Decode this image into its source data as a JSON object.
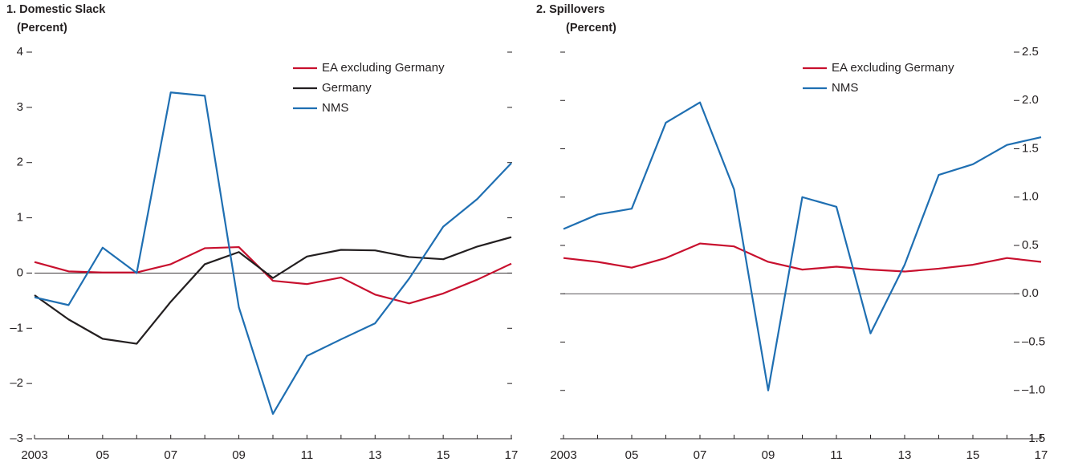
{
  "chart_data": [
    {
      "type": "line",
      "title": "1. Domestic Slack",
      "subtitle": "(Percent)",
      "categories": [
        "2003",
        null,
        "05",
        null,
        "07",
        null,
        "09",
        null,
        "11",
        null,
        "13",
        null,
        "15",
        null,
        "17"
      ],
      "series": [
        {
          "name": "EA excluding Germany",
          "color": "#c8102e",
          "values": [
            0.2,
            0.03,
            0.01,
            0.01,
            0.16,
            0.45,
            0.47,
            -0.14,
            -0.2,
            -0.08,
            -0.39,
            -0.55,
            -0.37,
            -0.12,
            0.17
          ]
        },
        {
          "name": "Germany",
          "color": "#231f20",
          "values": [
            -0.4,
            -0.84,
            -1.19,
            -1.28,
            -0.52,
            0.16,
            0.38,
            -0.09,
            0.3,
            0.42,
            0.41,
            0.29,
            0.25,
            0.48,
            0.65
          ]
        },
        {
          "name": "NMS",
          "color": "#1f6fb2",
          "values": [
            -0.44,
            -0.58,
            0.46,
            0,
            3.27,
            3.21,
            -0.62,
            -2.55,
            -1.5,
            -1.2,
            -0.91,
            -0.1,
            0.84,
            1.34,
            1.99
          ]
        }
      ],
      "ylim": [
        -3,
        4
      ],
      "yticks": [
        {
          "value": -3,
          "label": "–3"
        },
        {
          "value": -2,
          "label": "–2"
        },
        {
          "value": -1,
          "label": "–1"
        },
        0,
        1,
        2,
        3,
        4
      ],
      "axis_side": "left"
    },
    {
      "type": "line",
      "title": "2. Spillovers",
      "subtitle": "(Percent)",
      "categories": [
        "2003",
        null,
        "05",
        null,
        "07",
        null,
        "09",
        null,
        "11",
        null,
        "13",
        null,
        "15",
        null,
        "17"
      ],
      "series": [
        {
          "name": "EA excluding Germany",
          "color": "#c8102e",
          "values": [
            0.37,
            0.33,
            0.27,
            0.37,
            0.52,
            0.49,
            0.33,
            0.25,
            0.28,
            0.25,
            0.23,
            0.26,
            0.3,
            0.37,
            0.33
          ]
        },
        {
          "name": "NMS",
          "color": "#1f6fb2",
          "values": [
            0.67,
            0.82,
            0.88,
            1.77,
            1.98,
            1.08,
            -1.0,
            1.0,
            0.9,
            -0.41,
            0.3,
            1.23,
            1.34,
            1.54,
            1.62
          ]
        }
      ],
      "ylim": [
        -1.5,
        2.5
      ],
      "yticks": [
        {
          "value": -1.5,
          "label": "–1.5"
        },
        {
          "value": -1,
          "label": "–1.0"
        },
        {
          "value": -0.5,
          "label": "–0.5"
        },
        {
          "value": 0,
          "label": "0.0"
        },
        0.5,
        {
          "value": 1,
          "label": "1.0"
        },
        1.5,
        {
          "value": 2,
          "label": "2.0"
        },
        2.5
      ],
      "axis_side": "right"
    }
  ]
}
